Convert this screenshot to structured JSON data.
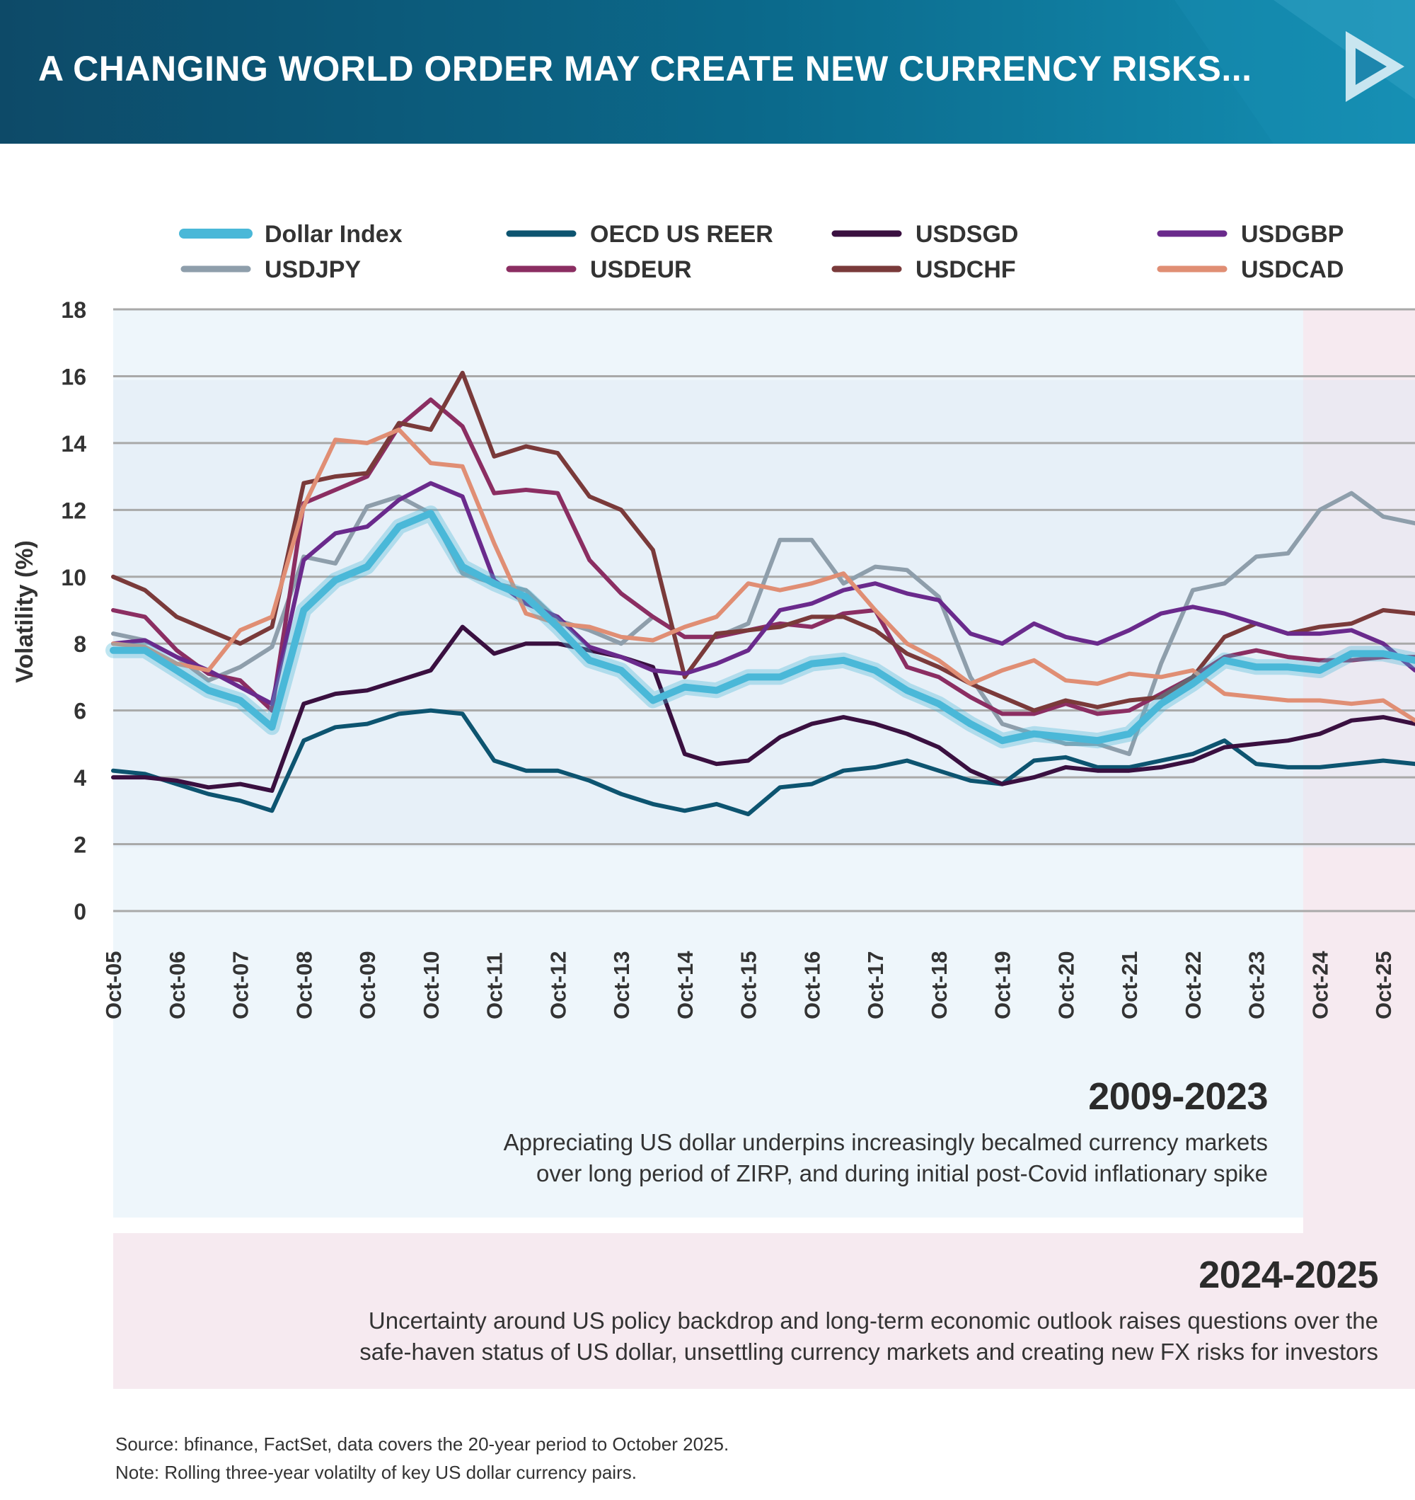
{
  "header": {
    "title": "A CHANGING WORLD ORDER MAY CREATE NEW CURRENCY RISKS..."
  },
  "chart_data": {
    "type": "line",
    "title": "",
    "xlabel": "",
    "ylabel": "Volatility (%)",
    "ylim": [
      0,
      18
    ],
    "yticks": [
      "0",
      "2",
      "4",
      "6",
      "8",
      "10",
      "12",
      "14",
      "16",
      "18"
    ],
    "xticks": [
      "Oct-05",
      "Oct-06",
      "Oct-07",
      "Oct-08",
      "Oct-09",
      "Oct-10",
      "Oct-11",
      "Oct-12",
      "Oct-13",
      "Oct-14",
      "Oct-15",
      "Oct-16",
      "Oct-17",
      "Oct-18",
      "Oct-19",
      "Oct-20",
      "Oct-21",
      "Oct-22",
      "Oct-23",
      "Oct-24",
      "Oct-25"
    ],
    "x_range": [
      2005.75,
      2026.25
    ],
    "legend_position": "top",
    "grid": true,
    "x": [
      2005.75,
      2006.25,
      2006.75,
      2007.25,
      2007.75,
      2008.25,
      2008.75,
      2009.25,
      2009.75,
      2010.25,
      2010.75,
      2011.25,
      2011.75,
      2012.25,
      2012.75,
      2013.25,
      2013.75,
      2014.25,
      2014.75,
      2015.25,
      2015.75,
      2016.25,
      2016.75,
      2017.25,
      2017.75,
      2018.25,
      2018.75,
      2019.25,
      2019.75,
      2020.25,
      2020.75,
      2021.25,
      2021.75,
      2022.25,
      2022.75,
      2023.25,
      2023.75,
      2024.25,
      2024.75,
      2025.25,
      2025.75,
      2026.25
    ],
    "series": [
      {
        "name": "Dollar Index",
        "color": "#4ab8d8",
        "highlight": true,
        "values": [
          7.8,
          7.8,
          7.2,
          6.6,
          6.3,
          5.5,
          9.0,
          9.9,
          10.3,
          11.5,
          11.9,
          10.3,
          9.8,
          9.4,
          8.5,
          7.5,
          7.2,
          6.3,
          6.7,
          6.6,
          7.0,
          7.0,
          7.4,
          7.5,
          7.2,
          6.6,
          6.2,
          5.6,
          5.1,
          5.3,
          5.2,
          5.1,
          5.3,
          6.2,
          6.8,
          7.5,
          7.3,
          7.3,
          7.2,
          7.7,
          7.7,
          7.5
        ]
      },
      {
        "name": "USDJPY",
        "color": "#8e9eab",
        "values": [
          8.3,
          8.1,
          7.6,
          6.9,
          7.3,
          7.9,
          10.6,
          10.4,
          12.1,
          12.4,
          11.9,
          10.1,
          9.8,
          9.6,
          8.7,
          8.4,
          8.0,
          8.8,
          8.2,
          8.2,
          8.6,
          11.1,
          11.1,
          9.8,
          10.3,
          10.2,
          9.4,
          7.0,
          5.6,
          5.3,
          5.0,
          5.0,
          4.7,
          7.4,
          9.6,
          9.8,
          10.6,
          10.7,
          12.0,
          12.5,
          11.8,
          11.6
        ]
      },
      {
        "name": "OECD US REER",
        "color": "#0d5470",
        "values": [
          4.2,
          4.1,
          3.8,
          3.5,
          3.3,
          3.0,
          5.1,
          5.5,
          5.6,
          5.9,
          6.0,
          5.9,
          4.5,
          4.2,
          4.2,
          3.9,
          3.5,
          3.2,
          3.0,
          3.2,
          2.9,
          3.7,
          3.8,
          4.2,
          4.3,
          4.5,
          4.2,
          3.9,
          3.8,
          4.5,
          4.6,
          4.3,
          4.3,
          4.5,
          4.7,
          5.1,
          4.4,
          4.3,
          4.3,
          4.4,
          4.5,
          4.4
        ]
      },
      {
        "name": "USDEUR",
        "color": "#8b2e62",
        "values": [
          9.0,
          8.8,
          7.8,
          7.1,
          6.9,
          6.0,
          12.2,
          12.6,
          13.0,
          14.5,
          15.3,
          14.5,
          12.5,
          12.6,
          12.5,
          10.5,
          9.5,
          8.8,
          8.2,
          8.2,
          8.4,
          8.6,
          8.5,
          8.9,
          9.0,
          7.3,
          7.0,
          6.4,
          5.9,
          5.9,
          6.2,
          5.9,
          6.0,
          6.5,
          7.0,
          7.6,
          7.8,
          7.6,
          7.5,
          7.5,
          7.6,
          7.6
        ]
      },
      {
        "name": "USDSGD",
        "color": "#3a1040",
        "values": [
          4.0,
          4.0,
          3.9,
          3.7,
          3.8,
          3.6,
          6.2,
          6.5,
          6.6,
          6.9,
          7.2,
          8.5,
          7.7,
          8.0,
          8.0,
          7.8,
          7.6,
          7.3,
          4.7,
          4.4,
          4.5,
          5.2,
          5.6,
          5.8,
          5.6,
          5.3,
          4.9,
          4.2,
          3.8,
          4.0,
          4.3,
          4.2,
          4.2,
          4.3,
          4.5,
          4.9,
          5.0,
          5.1,
          5.3,
          5.7,
          5.8,
          5.6
        ]
      },
      {
        "name": "USDCHF",
        "color": "#7a3a3a",
        "values": [
          10.0,
          9.6,
          8.8,
          8.4,
          8.0,
          8.5,
          12.8,
          13.0,
          13.1,
          14.6,
          14.4,
          16.1,
          13.6,
          13.9,
          13.7,
          12.4,
          12.0,
          10.8,
          7.0,
          8.3,
          8.4,
          8.5,
          8.8,
          8.8,
          8.4,
          7.7,
          7.3,
          6.8,
          6.4,
          6.0,
          6.3,
          6.1,
          6.3,
          6.4,
          7.0,
          8.2,
          8.6,
          8.3,
          8.5,
          8.6,
          9.0,
          8.9
        ]
      },
      {
        "name": "USDGBP",
        "color": "#6a2a8c",
        "values": [
          8.0,
          8.1,
          7.6,
          7.2,
          6.7,
          6.2,
          10.5,
          11.3,
          11.5,
          12.3,
          12.8,
          12.4,
          9.9,
          9.2,
          8.8,
          7.9,
          7.6,
          7.2,
          7.1,
          7.4,
          7.8,
          9.0,
          9.2,
          9.6,
          9.8,
          9.5,
          9.3,
          8.3,
          8.0,
          8.6,
          8.2,
          8.0,
          8.4,
          8.9,
          9.1,
          8.9,
          8.6,
          8.3,
          8.3,
          8.4,
          8.0,
          7.2
        ]
      },
      {
        "name": "USDCAD",
        "color": "#e08e74",
        "values": [
          8.0,
          7.9,
          7.4,
          7.2,
          8.4,
          8.8,
          12.1,
          14.1,
          14.0,
          14.4,
          13.4,
          13.3,
          11.0,
          8.9,
          8.6,
          8.5,
          8.2,
          8.1,
          8.5,
          8.8,
          9.8,
          9.6,
          9.8,
          10.1,
          9.0,
          8.0,
          7.5,
          6.8,
          7.2,
          7.5,
          6.9,
          6.8,
          7.1,
          7.0,
          7.2,
          6.5,
          6.4,
          6.3,
          6.3,
          6.2,
          6.3,
          5.7
        ]
      }
    ],
    "legend_order": [
      "Dollar Index",
      "OECD US REER",
      "USDSGD",
      "USDGBP",
      "USDJPY",
      "USDEUR",
      "USDCHF",
      "USDCAD"
    ],
    "periods": [
      {
        "label": "2009-2023",
        "x_end": 2024.05,
        "color": "#eef6fb"
      },
      {
        "label": "2024-2025",
        "x_start": 2024.05,
        "color": "#f6eaf0"
      }
    ]
  },
  "annotations": {
    "period1_title": "2009-2023",
    "period1_line1": "Appreciating US dollar underpins increasingly becalmed currency markets",
    "period1_line2": "over long period of ZIRP, and during initial post-Covid inflationary spike",
    "period2_title": "2024-2025",
    "period2_line1": "Uncertainty around US policy backdrop and long-term economic outlook raises questions over the",
    "period2_line2": "safe-haven status of US dollar, unsettling currency markets and creating new FX risks for investors"
  },
  "footer": {
    "source": "Source: bfinance, FactSet, data covers the 20-year period to October 2025.",
    "note": "Note: Rolling three-year volatilty of key US dollar currency pairs."
  }
}
